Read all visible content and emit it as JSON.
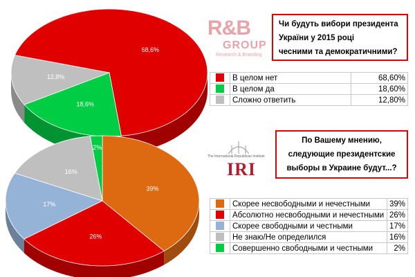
{
  "chart_data": [
    {
      "type": "pie",
      "title": "Чи будуть вибори президента України у 2015 році чесними та демократичними?",
      "title_lines": [
        "Чи будуть вибори президента",
        "України у 2015 році",
        "чесними та демократичними?"
      ],
      "labels": [
        "В целом нет",
        "В целом да",
        "Сложно ответить"
      ],
      "values": [
        68.6,
        18.6,
        12.8
      ],
      "slice_labels": [
        "68,6%",
        "18,6%",
        "12,8%"
      ],
      "legend_values": [
        "68,60%",
        "18,60%",
        "12,80%"
      ],
      "colors": [
        "#e00000",
        "#00cc44",
        "#bfbfbf"
      ],
      "label_color": "#ffffff",
      "legend": "right"
    },
    {
      "type": "pie",
      "title": "По Вашему мнению, следующие президентские выборы в Украине будут...?",
      "title_lines": [
        "По Вашему мнению,",
        "следующие президентские",
        "выборы в Украине будут...?"
      ],
      "labels": [
        "Скорее несвободными и нечестными",
        "Абсолютно несвободными и нечестными",
        "Скорее свободными и честными",
        "Не знаю/Не определился",
        "Совершенно свободными и честными"
      ],
      "values": [
        39,
        26,
        17,
        16,
        2
      ],
      "slice_labels": [
        "39%",
        "26%",
        "17%",
        "16%",
        "2%"
      ],
      "legend_values": [
        "39%",
        "26%",
        "17%",
        "16%",
        "2%"
      ],
      "colors": [
        "#dd6a10",
        "#e00000",
        "#95b3d7",
        "#bfbfbf",
        "#00cc44"
      ],
      "label_color": "#ffffff",
      "legend": "right"
    }
  ],
  "logos": {
    "rb": {
      "main": "R&B",
      "group": "GROUP",
      "sub": "Research & Branding"
    },
    "iri": {
      "main": "IRI",
      "small": "The International Republican Institute"
    }
  }
}
